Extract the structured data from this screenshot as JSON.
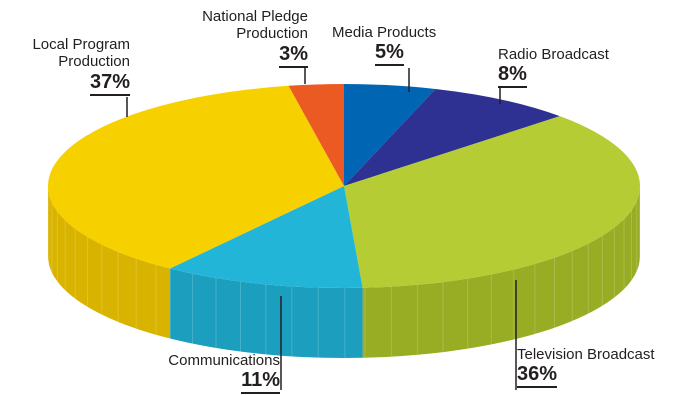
{
  "chart_data": {
    "type": "pie",
    "style": "3d",
    "categories": [
      "Media Products",
      "Radio Broadcast",
      "Television Broadcast",
      "Communications",
      "Local Program Production",
      "National Pledge Production"
    ],
    "values": [
      5,
      8,
      36,
      11,
      37,
      3
    ],
    "labels": {
      "media": {
        "name": "Media Products",
        "pct": "5%"
      },
      "radio": {
        "name": "Radio Broadcast",
        "pct": "8%"
      },
      "tv": {
        "name": "Television Broadcast",
        "pct": "36%"
      },
      "comm": {
        "name": "Communications",
        "pct": "11%"
      },
      "local": {
        "name1": "Local Program",
        "name2": "Production",
        "pct": "37%"
      },
      "pledge": {
        "name1": "National Pledge",
        "name2": "Production",
        "pct": "3%"
      }
    },
    "colors": {
      "media": "#0066b3",
      "radio": "#2e3192",
      "tv": "#b5cc34",
      "comm": "#22b5d8",
      "local": "#f7d000",
      "pledge": "#ec5a24"
    },
    "side_colors": {
      "tv": "#98ad23",
      "comm": "#1c9fbf",
      "local": "#d8b400"
    }
  }
}
